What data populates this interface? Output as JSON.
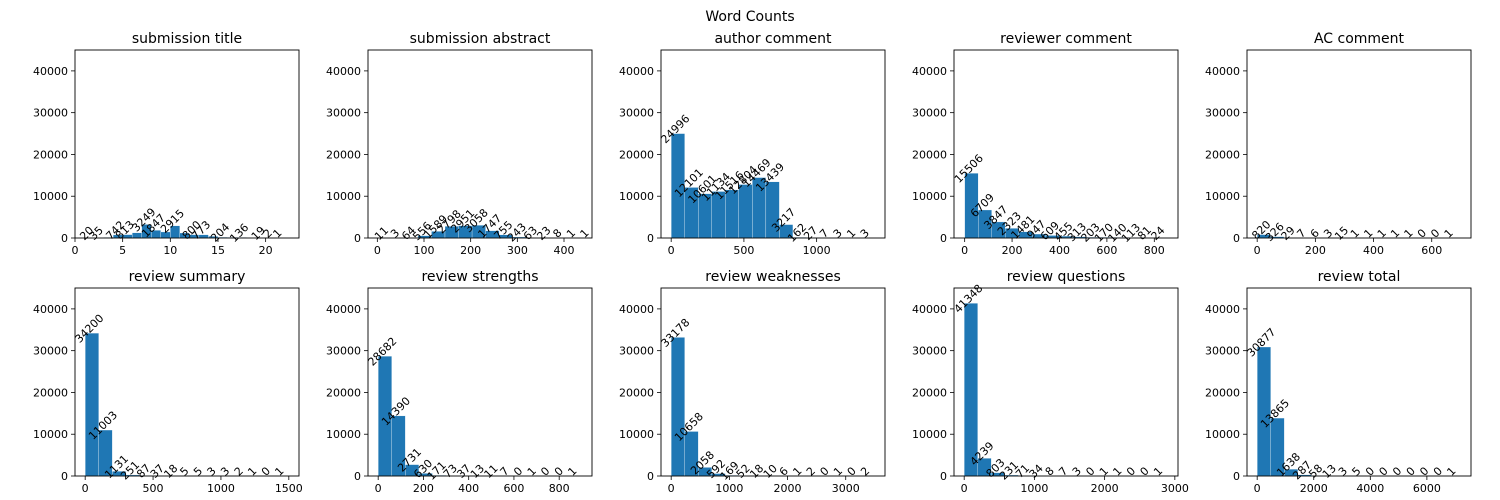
{
  "figure": {
    "title": "Word Counts"
  },
  "chart_data": [
    {
      "type": "bar",
      "title": "submission title",
      "bar_color": "#1f77b4",
      "xlim": [
        0,
        23.5
      ],
      "ylim": [
        0,
        45000
      ],
      "xticks": [
        0,
        5,
        10,
        15,
        20
      ],
      "yticks": [
        0,
        10000,
        20000,
        30000,
        40000
      ],
      "bins": [
        [
          1,
          2
        ],
        [
          2,
          3
        ],
        [
          3,
          4
        ],
        [
          4,
          5
        ],
        [
          5,
          6
        ],
        [
          6,
          7
        ],
        [
          7,
          8
        ],
        [
          8,
          9
        ],
        [
          9,
          10
        ],
        [
          10,
          11
        ],
        [
          11,
          12
        ],
        [
          12,
          13
        ],
        [
          13,
          14
        ],
        [
          14,
          15
        ],
        [
          15,
          16
        ],
        [
          16,
          17
        ],
        [
          17,
          18
        ],
        [
          18,
          19
        ],
        [
          19,
          20
        ],
        [
          20,
          21
        ],
        [
          21,
          22
        ]
      ],
      "values": [
        20,
        35,
        135,
        742,
        813,
        1249,
        3249,
        1847,
        1447,
        2915,
        1200,
        800,
        773,
        400,
        204,
        150,
        136,
        50,
        19,
        2,
        1
      ],
      "labels": [
        "20",
        "35",
        "",
        "742",
        "813",
        "",
        "3249",
        "1847",
        "",
        "2915",
        "",
        "800",
        "773",
        "",
        "204",
        "",
        "136",
        "",
        "19",
        "2",
        "1"
      ]
    },
    {
      "type": "bar",
      "title": "submission abstract",
      "bar_color": "#1f77b4",
      "xlim": [
        -20,
        460
      ],
      "ylim": [
        0,
        45000
      ],
      "xticks": [
        0,
        100,
        200,
        300,
        400
      ],
      "yticks": [
        0,
        10000,
        20000,
        30000,
        40000
      ],
      "bins": [
        [
          0,
          29
        ],
        [
          29,
          58
        ],
        [
          58,
          87
        ],
        [
          87,
          116
        ],
        [
          116,
          145
        ],
        [
          145,
          174
        ],
        [
          174,
          203
        ],
        [
          203,
          232
        ],
        [
          232,
          261
        ],
        [
          261,
          290
        ],
        [
          290,
          319
        ],
        [
          319,
          348
        ],
        [
          348,
          377
        ],
        [
          377,
          406
        ],
        [
          406,
          435
        ]
      ],
      "values": [
        11,
        3,
        64,
        556,
        1589,
        2798,
        2951,
        3058,
        1747,
        755,
        243,
        63,
        23,
        8,
        1
      ],
      "labels": [
        "11",
        "3",
        "64",
        "556",
        "1589",
        "2798",
        "2951",
        "3058",
        "1747",
        "755",
        "243",
        "63",
        "23",
        "8",
        "1"
      ],
      "extra_labels": [
        "1"
      ]
    },
    {
      "type": "bar",
      "title": "author comment",
      "bar_color": "#1f77b4",
      "xlim": [
        -70,
        1470
      ],
      "ylim": [
        0,
        45000
      ],
      "xticks": [
        0,
        500,
        1000
      ],
      "yticks": [
        0,
        10000,
        20000,
        30000,
        40000
      ],
      "bins": [
        [
          0,
          93
        ],
        [
          93,
          186
        ],
        [
          186,
          279
        ],
        [
          279,
          372
        ],
        [
          372,
          465
        ],
        [
          465,
          558
        ],
        [
          558,
          651
        ],
        [
          651,
          744
        ],
        [
          744,
          837
        ],
        [
          837,
          930
        ],
        [
          930,
          1023
        ],
        [
          1023,
          1116
        ],
        [
          1116,
          1209
        ],
        [
          1209,
          1302
        ],
        [
          1302,
          1395
        ]
      ],
      "values": [
        24996,
        12101,
        10601,
        11134,
        11516,
        12804,
        14469,
        13439,
        3217,
        162,
        27,
        7,
        3,
        1,
        3
      ],
      "labels": [
        "24996",
        "12101",
        "10601",
        "11134",
        "11516",
        "12804",
        "14469",
        "13439",
        "3217",
        "162",
        "27",
        "7",
        "3",
        "1",
        "3"
      ]
    },
    {
      "type": "bar",
      "title": "reviewer comment",
      "bar_color": "#1f77b4",
      "xlim": [
        -45,
        900
      ],
      "ylim": [
        0,
        45000
      ],
      "xticks": [
        0,
        200,
        400,
        600,
        800
      ],
      "yticks": [
        0,
        10000,
        20000,
        30000,
        40000
      ],
      "bins": [
        [
          0,
          57
        ],
        [
          57,
          114
        ],
        [
          114,
          171
        ],
        [
          171,
          228
        ],
        [
          228,
          285
        ],
        [
          285,
          342
        ],
        [
          342,
          399
        ],
        [
          399,
          456
        ],
        [
          456,
          513
        ],
        [
          513,
          570
        ],
        [
          570,
          627
        ],
        [
          627,
          684
        ],
        [
          684,
          741
        ],
        [
          741,
          798
        ],
        [
          798,
          855
        ]
      ],
      "values": [
        15506,
        6709,
        3847,
        2323,
        1481,
        947,
        609,
        455,
        313,
        203,
        170,
        140,
        113,
        81,
        24
      ],
      "labels": [
        "15506",
        "6709",
        "3847",
        "2323",
        "1481",
        "947",
        "609",
        "455",
        "313",
        "203",
        "170",
        "140",
        "113",
        "81",
        "24"
      ]
    },
    {
      "type": "bar",
      "title": "AC comment",
      "bar_color": "#1f77b4",
      "xlim": [
        -35,
        735
      ],
      "ylim": [
        0,
        45000
      ],
      "xticks": [
        0,
        200,
        400,
        600
      ],
      "yticks": [
        0,
        10000,
        20000,
        30000,
        40000
      ],
      "bins": [
        [
          0,
          46
        ],
        [
          46,
          92
        ],
        [
          92,
          138
        ],
        [
          138,
          184
        ],
        [
          184,
          230
        ],
        [
          230,
          276
        ],
        [
          276,
          322
        ],
        [
          322,
          368
        ],
        [
          368,
          414
        ],
        [
          414,
          460
        ],
        [
          460,
          506
        ],
        [
          506,
          552
        ],
        [
          552,
          598
        ],
        [
          598,
          644
        ],
        [
          644,
          690
        ]
      ],
      "values": [
        820,
        326,
        29,
        7,
        6,
        3,
        15,
        1,
        1,
        1,
        1,
        1,
        0,
        0,
        1
      ],
      "labels": [
        "820",
        "326",
        "29",
        "7",
        "6",
        "3",
        "15",
        "1",
        "1",
        "1",
        "1",
        "1",
        "0",
        "0",
        "1"
      ]
    },
    {
      "type": "bar",
      "title": "review summary",
      "bar_color": "#1f77b4",
      "xlim": [
        -75,
        1575
      ],
      "ylim": [
        0,
        45000
      ],
      "xticks": [
        0,
        500,
        1000,
        1500
      ],
      "yticks": [
        0,
        10000,
        20000,
        30000,
        40000
      ],
      "bins": [
        [
          0,
          100
        ],
        [
          100,
          200
        ],
        [
          200,
          300
        ],
        [
          300,
          400
        ],
        [
          400,
          500
        ],
        [
          500,
          600
        ],
        [
          600,
          700
        ],
        [
          700,
          800
        ],
        [
          800,
          900
        ],
        [
          900,
          1000
        ],
        [
          1000,
          1100
        ],
        [
          1100,
          1200
        ],
        [
          1200,
          1300
        ],
        [
          1300,
          1400
        ],
        [
          1400,
          1500
        ]
      ],
      "values": [
        34200,
        11003,
        1131,
        251,
        87,
        37,
        18,
        5,
        5,
        3,
        3,
        2,
        1,
        0,
        1
      ],
      "labels": [
        "34200",
        "11003",
        "1131",
        "251",
        "87",
        "37",
        "18",
        "5",
        "5",
        "3",
        "3",
        "2",
        "1",
        "0",
        "1"
      ]
    },
    {
      "type": "bar",
      "title": "review strengths",
      "bar_color": "#1f77b4",
      "xlim": [
        -45,
        945
      ],
      "ylim": [
        0,
        45000
      ],
      "xticks": [
        0,
        200,
        400,
        600,
        800
      ],
      "yticks": [
        0,
        10000,
        20000,
        30000,
        40000
      ],
      "bins": [
        [
          0,
          60
        ],
        [
          60,
          120
        ],
        [
          120,
          180
        ],
        [
          180,
          240
        ],
        [
          240,
          300
        ],
        [
          300,
          360
        ],
        [
          360,
          420
        ],
        [
          420,
          480
        ],
        [
          480,
          540
        ],
        [
          540,
          600
        ],
        [
          600,
          660
        ],
        [
          660,
          720
        ],
        [
          720,
          780
        ],
        [
          780,
          840
        ],
        [
          840,
          900
        ]
      ],
      "values": [
        28682,
        14390,
        2731,
        630,
        171,
        73,
        37,
        13,
        11,
        7,
        0,
        1,
        0,
        0,
        1
      ],
      "labels": [
        "28682",
        "14390",
        "2731",
        "630",
        "171",
        "73",
        "37",
        "13",
        "11",
        "7",
        "0",
        "1",
        "0",
        "0",
        "1"
      ]
    },
    {
      "type": "bar",
      "title": "review weaknesses",
      "bar_color": "#1f77b4",
      "xlim": [
        -175,
        3675
      ],
      "ylim": [
        0,
        45000
      ],
      "xticks": [
        0,
        1000,
        2000,
        3000
      ],
      "yticks": [
        0,
        10000,
        20000,
        30000,
        40000
      ],
      "bins": [
        [
          0,
          233
        ],
        [
          233,
          466
        ],
        [
          466,
          699
        ],
        [
          699,
          932
        ],
        [
          932,
          1165
        ],
        [
          1165,
          1398
        ],
        [
          1398,
          1631
        ],
        [
          1631,
          1864
        ],
        [
          1864,
          2097
        ],
        [
          2097,
          2330
        ],
        [
          2330,
          2563
        ],
        [
          2563,
          2796
        ],
        [
          2796,
          3029
        ],
        [
          3029,
          3262
        ],
        [
          3262,
          3495
        ]
      ],
      "values": [
        33178,
        10658,
        2058,
        592,
        169,
        52,
        18,
        10,
        6,
        1,
        2,
        0,
        1,
        0,
        2
      ],
      "labels": [
        "33178",
        "10658",
        "2058",
        "592",
        "169",
        "52",
        "18",
        "10",
        "6",
        "1",
        "2",
        "0",
        "1",
        "0",
        "2"
      ]
    },
    {
      "type": "bar",
      "title": "review questions",
      "bar_color": "#1f77b4",
      "xlim": [
        -145,
        3045
      ],
      "ylim": [
        0,
        45000
      ],
      "xticks": [
        0,
        1000,
        2000,
        3000
      ],
      "yticks": [
        0,
        10000,
        20000,
        30000,
        40000
      ],
      "bins": [
        [
          0,
          193
        ],
        [
          193,
          386
        ],
        [
          386,
          579
        ],
        [
          579,
          772
        ],
        [
          772,
          965
        ],
        [
          965,
          1158
        ],
        [
          1158,
          1351
        ],
        [
          1351,
          1544
        ],
        [
          1544,
          1737
        ],
        [
          1737,
          1930
        ],
        [
          1930,
          2123
        ],
        [
          2123,
          2316
        ],
        [
          2316,
          2509
        ],
        [
          2509,
          2702
        ],
        [
          2702,
          2895
        ]
      ],
      "values": [
        41348,
        4239,
        803,
        231,
        71,
        34,
        8,
        7,
        3,
        0,
        1,
        1,
        0,
        0,
        1
      ],
      "labels": [
        "41348",
        "4239",
        "803",
        "231",
        "71",
        "34",
        "8",
        "7",
        "3",
        "0",
        "1",
        "1",
        "0",
        "0",
        "1"
      ]
    },
    {
      "type": "bar",
      "title": "review total",
      "bar_color": "#1f77b4",
      "xlim": [
        -360,
        7560
      ],
      "ylim": [
        0,
        45000
      ],
      "xticks": [
        0,
        2000,
        4000,
        6000
      ],
      "yticks": [
        0,
        10000,
        20000,
        30000,
        40000
      ],
      "bins": [
        [
          0,
          480
        ],
        [
          480,
          960
        ],
        [
          960,
          1440
        ],
        [
          1440,
          1920
        ],
        [
          1920,
          2400
        ],
        [
          2400,
          2880
        ],
        [
          2880,
          3360
        ],
        [
          3360,
          3840
        ],
        [
          3840,
          4320
        ],
        [
          4320,
          4800
        ],
        [
          4800,
          5280
        ],
        [
          5280,
          5760
        ],
        [
          5760,
          6240
        ],
        [
          6240,
          6720
        ],
        [
          6720,
          7200
        ]
      ],
      "values": [
        30877,
        13865,
        1638,
        287,
        58,
        13,
        3,
        5,
        0,
        0,
        0,
        0,
        0,
        0,
        1
      ],
      "labels": [
        "30877",
        "13865",
        "1638",
        "287",
        "58",
        "13",
        "3",
        "5",
        "0",
        "0",
        "0",
        "0",
        "0",
        "0",
        "1"
      ]
    }
  ]
}
